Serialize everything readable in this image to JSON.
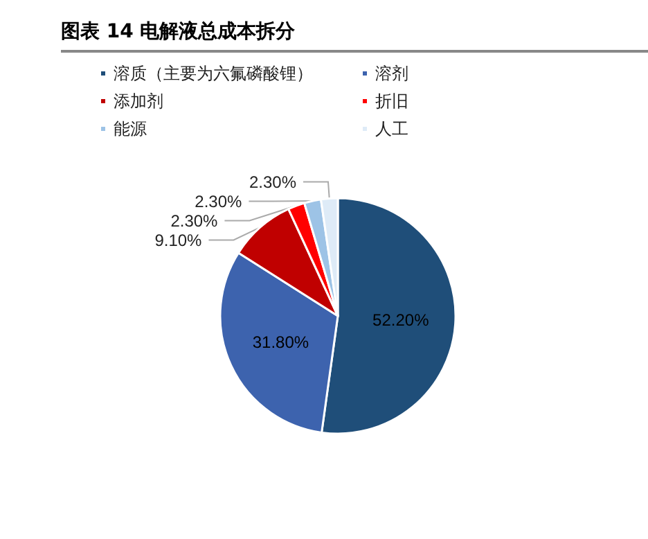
{
  "chart_data": {
    "type": "pie",
    "title": "图表 14 电解液总成本拆分",
    "categories": [
      "溶质（主要为六氟磷酸锂）",
      "溶剂",
      "添加剂",
      "折旧",
      "能源",
      "人工"
    ],
    "values": [
      52.2,
      31.8,
      9.1,
      2.3,
      2.3,
      2.3
    ],
    "colors": [
      "#1f4e79",
      "#3d63ae",
      "#c00000",
      "#ff0000",
      "#9dc3e6",
      "#deebf7"
    ],
    "value_labels": [
      "52.20%",
      "31.80%",
      "9.10%",
      "2.30%",
      "2.30%",
      "2.30%"
    ],
    "legend": "top"
  }
}
